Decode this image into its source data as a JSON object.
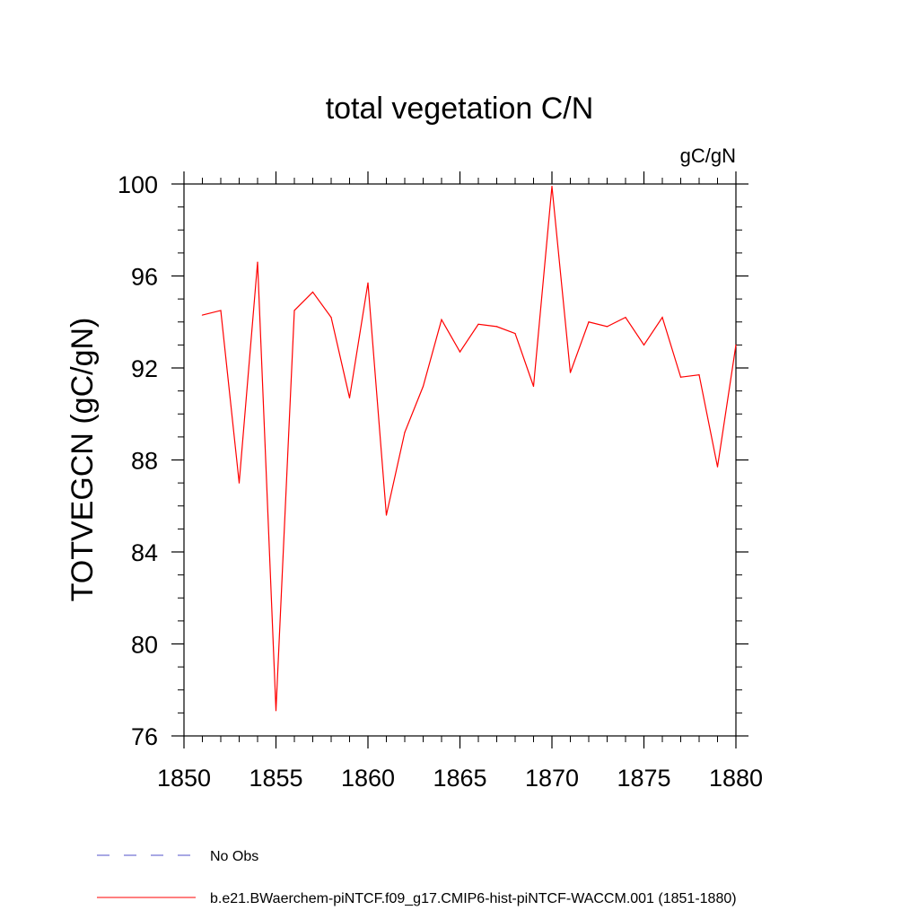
{
  "chart_data": {
    "type": "line",
    "title": "total vegetation C/N",
    "units": "gC/gN",
    "ylabel": "TOTVEGCN  (gC/gN)",
    "xlabel": "",
    "xlim": [
      1850,
      1880
    ],
    "ylim": [
      76,
      100
    ],
    "x_ticks": [
      "1850",
      "1855",
      "1860",
      "1865",
      "1870",
      "1875",
      "1880"
    ],
    "y_ticks": [
      "76",
      "80",
      "84",
      "88",
      "92",
      "96",
      "100"
    ],
    "grid": false,
    "legend_placement": "bottom",
    "legend": [
      {
        "label": "No Obs",
        "color": "#5050c8",
        "dash": "dashed"
      },
      {
        "label": "b.e21.BWaerchem-piNTCF.f09_g17.CMIP6-hist-piNTCF-WACCM.001 (1851-1880)",
        "color": "#ff0000",
        "dash": "solid"
      }
    ],
    "series": [
      {
        "name": "b.e21.BWaerchem-piNTCF.f09_g17.CMIP6-hist-piNTCF-WACCM.001 (1851-1880)",
        "color": "#ff0000",
        "x": [
          1851,
          1852,
          1853,
          1854,
          1855,
          1856,
          1857,
          1858,
          1859,
          1860,
          1861,
          1862,
          1863,
          1864,
          1865,
          1866,
          1867,
          1868,
          1869,
          1870,
          1871,
          1872,
          1873,
          1874,
          1875,
          1876,
          1877,
          1878,
          1879,
          1880
        ],
        "y": [
          94.3,
          94.5,
          87.0,
          96.6,
          77.1,
          94.5,
          95.3,
          94.2,
          90.7,
          95.7,
          85.6,
          89.2,
          91.2,
          94.1,
          92.7,
          93.9,
          93.8,
          93.5,
          91.2,
          99.9,
          91.8,
          94.0,
          93.8,
          94.2,
          93.0,
          94.2,
          91.6,
          91.7,
          87.7,
          93.0
        ]
      }
    ]
  }
}
